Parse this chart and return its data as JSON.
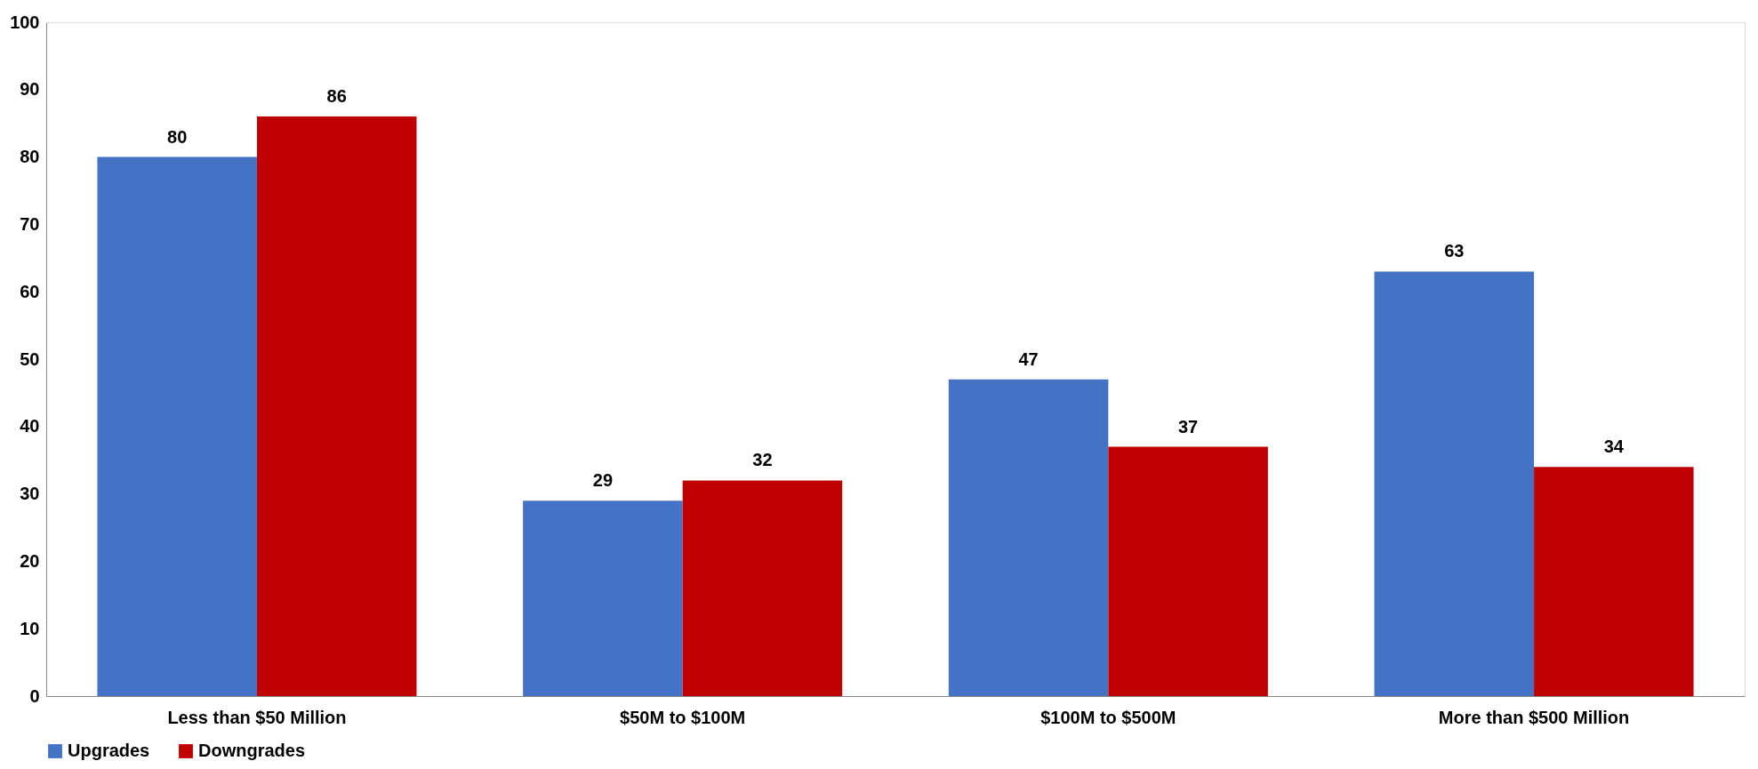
{
  "chart_data": {
    "type": "bar",
    "categories": [
      "Less than $50 Million",
      "$50M to $100M",
      "$100M to $500M",
      "More than $500 Million"
    ],
    "series": [
      {
        "name": "Upgrades",
        "color": "#4472c4",
        "values": [
          80,
          29,
          47,
          63
        ]
      },
      {
        "name": "Downgrades",
        "color": "#c00000",
        "values": [
          86,
          32,
          37,
          34
        ]
      }
    ],
    "ylim": [
      0,
      100
    ],
    "yticks": [
      0,
      10,
      20,
      30,
      40,
      50,
      60,
      70,
      80,
      90,
      100
    ],
    "grid": false,
    "legend": "bottom",
    "data_labels": true
  }
}
